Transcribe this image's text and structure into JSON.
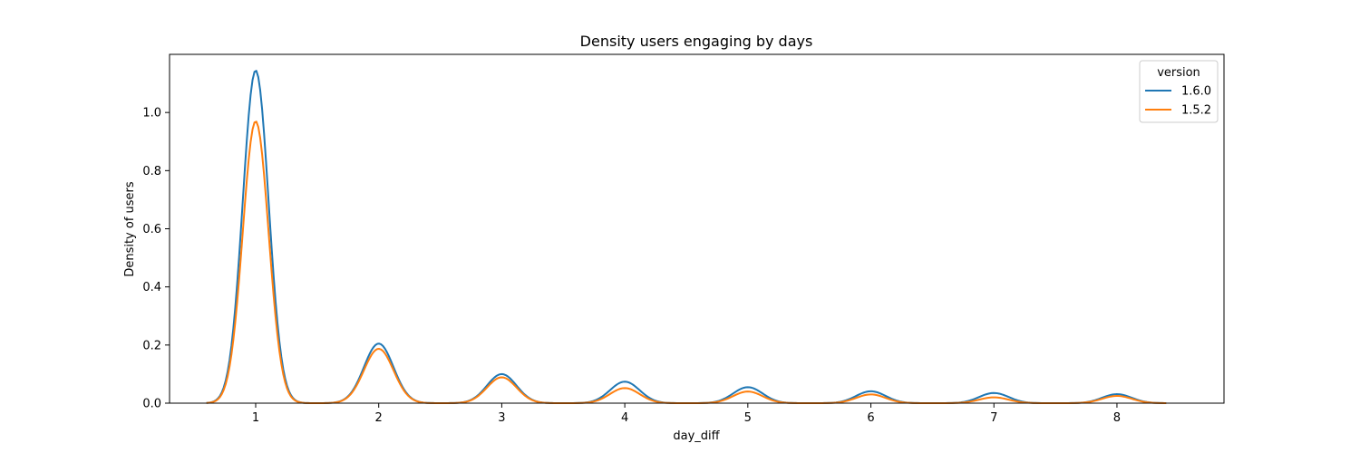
{
  "chart_data": {
    "type": "line",
    "title": "Density users engaging by days",
    "xlabel": "day_diff",
    "ylabel": "Density of users",
    "xlim": [
      0.3,
      8.87
    ],
    "ylim": [
      0,
      1.2
    ],
    "xticks": [
      1,
      2,
      3,
      4,
      5,
      6,
      7,
      8
    ],
    "yticks": [
      0.0,
      0.2,
      0.4,
      0.6,
      0.8,
      1.0
    ],
    "x_range": [
      0.6,
      8.4
    ],
    "grid": false,
    "legend": {
      "title": "version",
      "placement": "top-right"
    },
    "series": [
      {
        "name": "1.6.0",
        "color": "#1f77b4",
        "peaks": [
          {
            "x": 1,
            "y": 1.145
          },
          {
            "x": 2,
            "y": 0.205
          },
          {
            "x": 3,
            "y": 0.1
          },
          {
            "x": 4,
            "y": 0.074
          },
          {
            "x": 5,
            "y": 0.055
          },
          {
            "x": 6,
            "y": 0.041
          },
          {
            "x": 7,
            "y": 0.035
          },
          {
            "x": 8,
            "y": 0.031
          }
        ]
      },
      {
        "name": "1.5.2",
        "color": "#ff7f0e",
        "peaks": [
          {
            "x": 1,
            "y": 0.97
          },
          {
            "x": 2,
            "y": 0.187
          },
          {
            "x": 3,
            "y": 0.089
          },
          {
            "x": 4,
            "y": 0.052
          },
          {
            "x": 5,
            "y": 0.04
          },
          {
            "x": 6,
            "y": 0.03
          },
          {
            "x": 7,
            "y": 0.02
          },
          {
            "x": 8,
            "y": 0.025
          }
        ]
      }
    ]
  }
}
